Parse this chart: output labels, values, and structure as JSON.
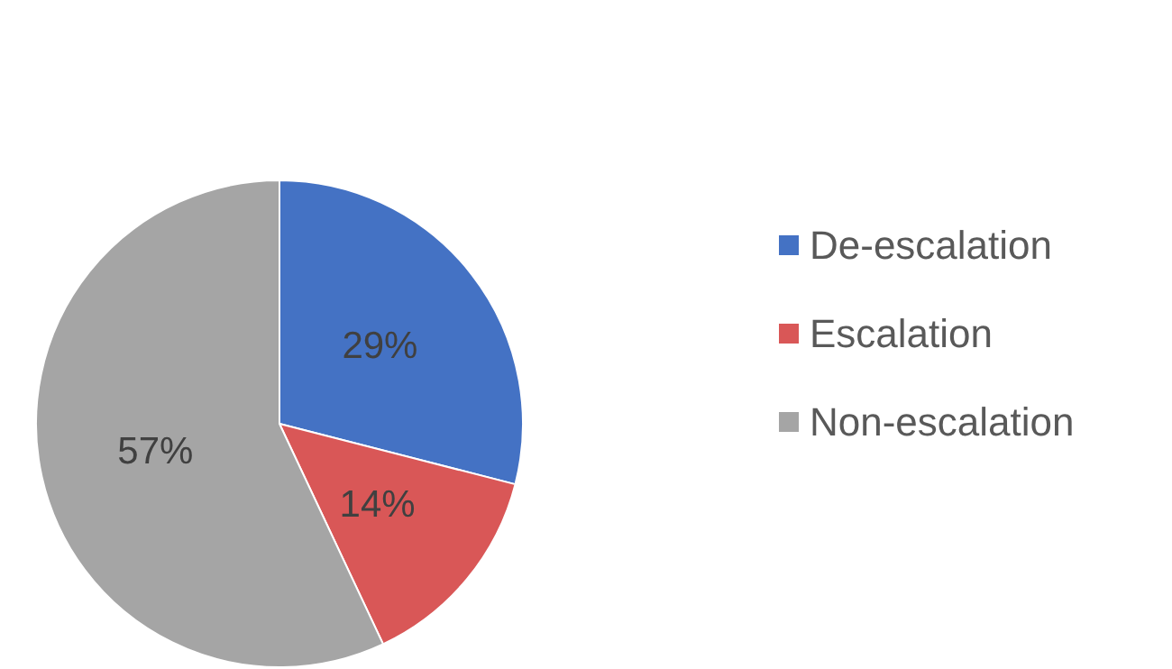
{
  "chart_data": {
    "type": "pie",
    "categories": [
      "De-escalation",
      "Escalation",
      "Non-escalation"
    ],
    "values": [
      29,
      14,
      57
    ],
    "colors": [
      "#4472c4",
      "#d95757",
      "#a5a5a5"
    ],
    "value_labels": [
      "29%",
      "14%",
      "57%"
    ],
    "legend": "right"
  }
}
